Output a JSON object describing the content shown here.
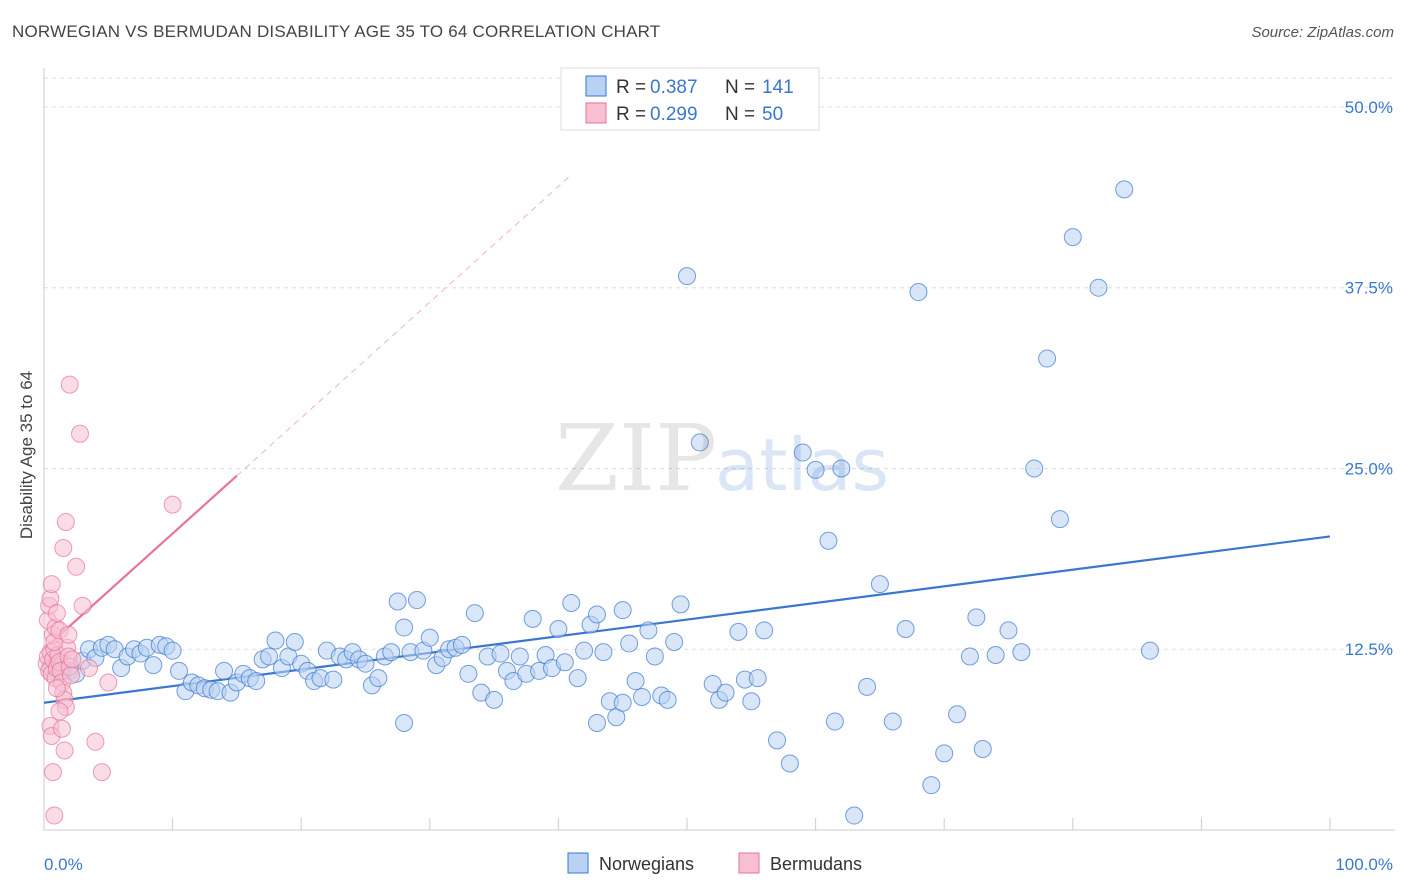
{
  "title": "NORWEGIAN VS BERMUDAN DISABILITY AGE 35 TO 64 CORRELATION CHART",
  "source": "Source: ZipAtlas.com",
  "colors": {
    "blue": "#3a78d0",
    "blue_fill": "#b9d2f3",
    "pink": "#e8729a",
    "pink_fill": "#f6c0d1",
    "grid": "#dddddd"
  },
  "chart_data": {
    "type": "scatter",
    "title": "NORWEGIAN VS BERMUDAN DISABILITY AGE 35 TO 64 CORRELATION CHART",
    "xlabel": "",
    "ylabel": "Disability Age 35 to 64",
    "xlim": [
      0,
      100
    ],
    "ylim": [
      0,
      52
    ],
    "x_tick_labels": [
      "0.0%",
      "100.0%"
    ],
    "y_ticks": [
      12.5,
      25.0,
      37.5,
      50.0
    ],
    "y_tick_labels": [
      "12.5%",
      "25.0%",
      "37.5%",
      "50.0%"
    ],
    "legend": [
      {
        "r_label": "R = ",
        "r_value": "0.387",
        "n_label": "N = ",
        "n_value": "141"
      },
      {
        "r_label": "R = ",
        "r_value": "0.299",
        "n_label": "N = ",
        "n_value": "50"
      }
    ],
    "series": [
      {
        "name": "Norwegians",
        "color": "#3a78d0",
        "trend": {
          "x": [
            0,
            100
          ],
          "y": [
            8.8,
            20.3
          ]
        },
        "points": [
          [
            0.5,
            11.2
          ],
          [
            1.0,
            11.5
          ],
          [
            1.5,
            11.0
          ],
          [
            2.0,
            11.0
          ],
          [
            2.5,
            10.8
          ],
          [
            3.0,
            11.7
          ],
          [
            3.5,
            12.5
          ],
          [
            4.0,
            11.9
          ],
          [
            4.5,
            12.6
          ],
          [
            5.0,
            12.8
          ],
          [
            5.5,
            12.5
          ],
          [
            6.0,
            11.2
          ],
          [
            6.5,
            12.0
          ],
          [
            7.0,
            12.5
          ],
          [
            7.5,
            12.2
          ],
          [
            8.0,
            12.6
          ],
          [
            8.5,
            11.4
          ],
          [
            9.0,
            12.8
          ],
          [
            9.5,
            12.7
          ],
          [
            10.0,
            12.4
          ],
          [
            10.5,
            11.0
          ],
          [
            11.0,
            9.6
          ],
          [
            11.5,
            10.2
          ],
          [
            12.0,
            10.0
          ],
          [
            12.5,
            9.8
          ],
          [
            13.0,
            9.7
          ],
          [
            13.5,
            9.6
          ],
          [
            14.0,
            11.0
          ],
          [
            14.5,
            9.5
          ],
          [
            15.0,
            10.2
          ],
          [
            15.5,
            10.8
          ],
          [
            16.0,
            10.5
          ],
          [
            16.5,
            10.3
          ],
          [
            17.0,
            11.8
          ],
          [
            17.5,
            12.0
          ],
          [
            18.0,
            13.1
          ],
          [
            18.5,
            11.2
          ],
          [
            19.0,
            12.0
          ],
          [
            19.5,
            13.0
          ],
          [
            20.0,
            11.5
          ],
          [
            20.5,
            11.0
          ],
          [
            21.0,
            10.3
          ],
          [
            21.5,
            10.5
          ],
          [
            22.0,
            12.4
          ],
          [
            22.5,
            10.4
          ],
          [
            23.0,
            12.0
          ],
          [
            23.5,
            11.8
          ],
          [
            24.0,
            12.3
          ],
          [
            24.5,
            11.8
          ],
          [
            25.0,
            11.5
          ],
          [
            25.5,
            10.0
          ],
          [
            26.0,
            10.5
          ],
          [
            26.5,
            12.0
          ],
          [
            27.0,
            12.3
          ],
          [
            27.5,
            15.8
          ],
          [
            28.0,
            14.0
          ],
          [
            28.5,
            12.3
          ],
          [
            29.0,
            15.9
          ],
          [
            29.5,
            12.4
          ],
          [
            30.0,
            13.3
          ],
          [
            30.5,
            11.4
          ],
          [
            31.0,
            11.9
          ],
          [
            31.5,
            12.5
          ],
          [
            32.0,
            12.6
          ],
          [
            32.5,
            12.8
          ],
          [
            33.0,
            10.8
          ],
          [
            33.5,
            15.0
          ],
          [
            34.0,
            9.5
          ],
          [
            34.5,
            12.0
          ],
          [
            35.0,
            9.0
          ],
          [
            35.5,
            12.2
          ],
          [
            36.0,
            11.0
          ],
          [
            36.5,
            10.3
          ],
          [
            37.0,
            12.0
          ],
          [
            37.5,
            10.8
          ],
          [
            38.0,
            14.6
          ],
          [
            38.5,
            11.0
          ],
          [
            39.0,
            12.1
          ],
          [
            39.5,
            11.2
          ],
          [
            40.0,
            13.9
          ],
          [
            40.5,
            11.6
          ],
          [
            41.0,
            15.7
          ],
          [
            41.5,
            10.5
          ],
          [
            42.0,
            12.4
          ],
          [
            42.5,
            14.2
          ],
          [
            43.0,
            14.9
          ],
          [
            43.5,
            12.3
          ],
          [
            44.0,
            8.9
          ],
          [
            44.5,
            7.8
          ],
          [
            45.0,
            15.2
          ],
          [
            45.5,
            12.9
          ],
          [
            46.0,
            10.3
          ],
          [
            46.5,
            9.2
          ],
          [
            47.0,
            13.8
          ],
          [
            47.5,
            12.0
          ],
          [
            48.0,
            9.3
          ],
          [
            48.5,
            9.0
          ],
          [
            49.0,
            13.0
          ],
          [
            49.5,
            15.6
          ],
          [
            50.0,
            38.3
          ],
          [
            51.0,
            26.8
          ],
          [
            52.0,
            10.1
          ],
          [
            52.5,
            9.0
          ],
          [
            53.0,
            9.5
          ],
          [
            54.0,
            13.7
          ],
          [
            54.5,
            10.4
          ],
          [
            55.0,
            8.9
          ],
          [
            55.5,
            10.5
          ],
          [
            56.0,
            13.8
          ],
          [
            57.0,
            6.2
          ],
          [
            58.0,
            4.6
          ],
          [
            59.0,
            26.1
          ],
          [
            60.0,
            24.9
          ],
          [
            61.0,
            20.0
          ],
          [
            62.0,
            25.0
          ],
          [
            63.0,
            1.0
          ],
          [
            64.0,
            9.9
          ],
          [
            65.0,
            17.0
          ],
          [
            66.0,
            7.5
          ],
          [
            67.0,
            13.9
          ],
          [
            68.0,
            37.2
          ],
          [
            69.0,
            3.1
          ],
          [
            70.0,
            5.3
          ],
          [
            71.0,
            8.0
          ],
          [
            72.0,
            12.0
          ],
          [
            72.5,
            14.7
          ],
          [
            73.0,
            5.6
          ],
          [
            74.0,
            12.1
          ],
          [
            75.0,
            13.8
          ],
          [
            76.0,
            12.3
          ],
          [
            77.0,
            25.0
          ],
          [
            78.0,
            32.6
          ],
          [
            79.0,
            21.5
          ],
          [
            80.0,
            41.0
          ],
          [
            82.0,
            37.5
          ],
          [
            84.0,
            44.3
          ],
          [
            86.0,
            12.4
          ],
          [
            61.5,
            7.5
          ],
          [
            43.0,
            7.4
          ],
          [
            28.0,
            7.4
          ],
          [
            45.0,
            8.8
          ]
        ]
      },
      {
        "name": "Bermudans",
        "color": "#e8729a",
        "trend": {
          "x": [
            0,
            15
          ],
          "y": [
            12.5,
            24.5
          ]
        },
        "points": [
          [
            0.2,
            11.5
          ],
          [
            0.3,
            12.0
          ],
          [
            0.4,
            11.0
          ],
          [
            0.5,
            12.3
          ],
          [
            0.6,
            10.8
          ],
          [
            0.7,
            11.8
          ],
          [
            0.8,
            12.5
          ],
          [
            0.9,
            10.5
          ],
          [
            1.0,
            11.2
          ],
          [
            1.1,
            12.1
          ],
          [
            1.2,
            11.6
          ],
          [
            1.3,
            11.0
          ],
          [
            1.4,
            10.2
          ],
          [
            1.5,
            9.5
          ],
          [
            1.6,
            9.0
          ],
          [
            1.7,
            8.5
          ],
          [
            1.8,
            12.6
          ],
          [
            1.9,
            12.0
          ],
          [
            2.0,
            11.3
          ],
          [
            2.1,
            10.7
          ],
          [
            2.2,
            11.8
          ],
          [
            0.3,
            14.5
          ],
          [
            0.4,
            15.5
          ],
          [
            0.5,
            16.0
          ],
          [
            0.6,
            17.0
          ],
          [
            0.7,
            13.5
          ],
          [
            0.8,
            13.0
          ],
          [
            0.9,
            14.0
          ],
          [
            1.0,
            15.0
          ],
          [
            1.2,
            13.8
          ],
          [
            1.5,
            19.5
          ],
          [
            1.7,
            21.3
          ],
          [
            1.9,
            13.5
          ],
          [
            2.0,
            30.8
          ],
          [
            2.5,
            18.2
          ],
          [
            2.8,
            27.4
          ],
          [
            3.0,
            15.5
          ],
          [
            3.5,
            11.2
          ],
          [
            4.0,
            6.1
          ],
          [
            4.5,
            4.0
          ],
          [
            5.0,
            10.2
          ],
          [
            0.5,
            7.2
          ],
          [
            0.6,
            6.5
          ],
          [
            0.7,
            4.0
          ],
          [
            0.8,
            1.0
          ],
          [
            1.0,
            9.8
          ],
          [
            1.2,
            8.2
          ],
          [
            1.4,
            7.0
          ],
          [
            1.6,
            5.5
          ],
          [
            10.0,
            22.5
          ]
        ]
      }
    ]
  },
  "bottom_legend": [
    "Norwegians",
    "Bermudans"
  ]
}
